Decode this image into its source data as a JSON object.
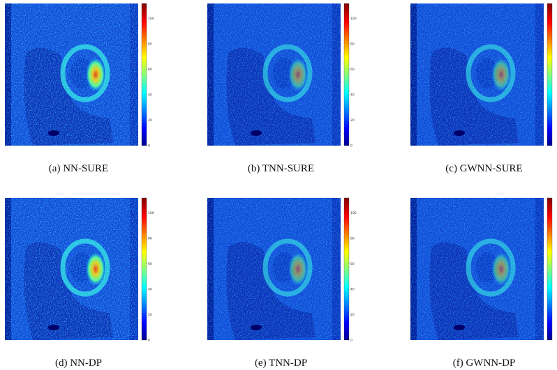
{
  "figure": {
    "colorbar_ticks": [
      0,
      20,
      40,
      60,
      80,
      100
    ],
    "panels": [
      {
        "caption": "(a)  NN-SURE"
      },
      {
        "caption": "(b)  TNN-SURE"
      },
      {
        "caption": "(c)  GWNN-SURE"
      },
      {
        "caption": "(d)  NN-DP"
      },
      {
        "caption": "(e)  TNN-DP"
      },
      {
        "caption": "(f)  GWNN-DP"
      }
    ]
  }
}
